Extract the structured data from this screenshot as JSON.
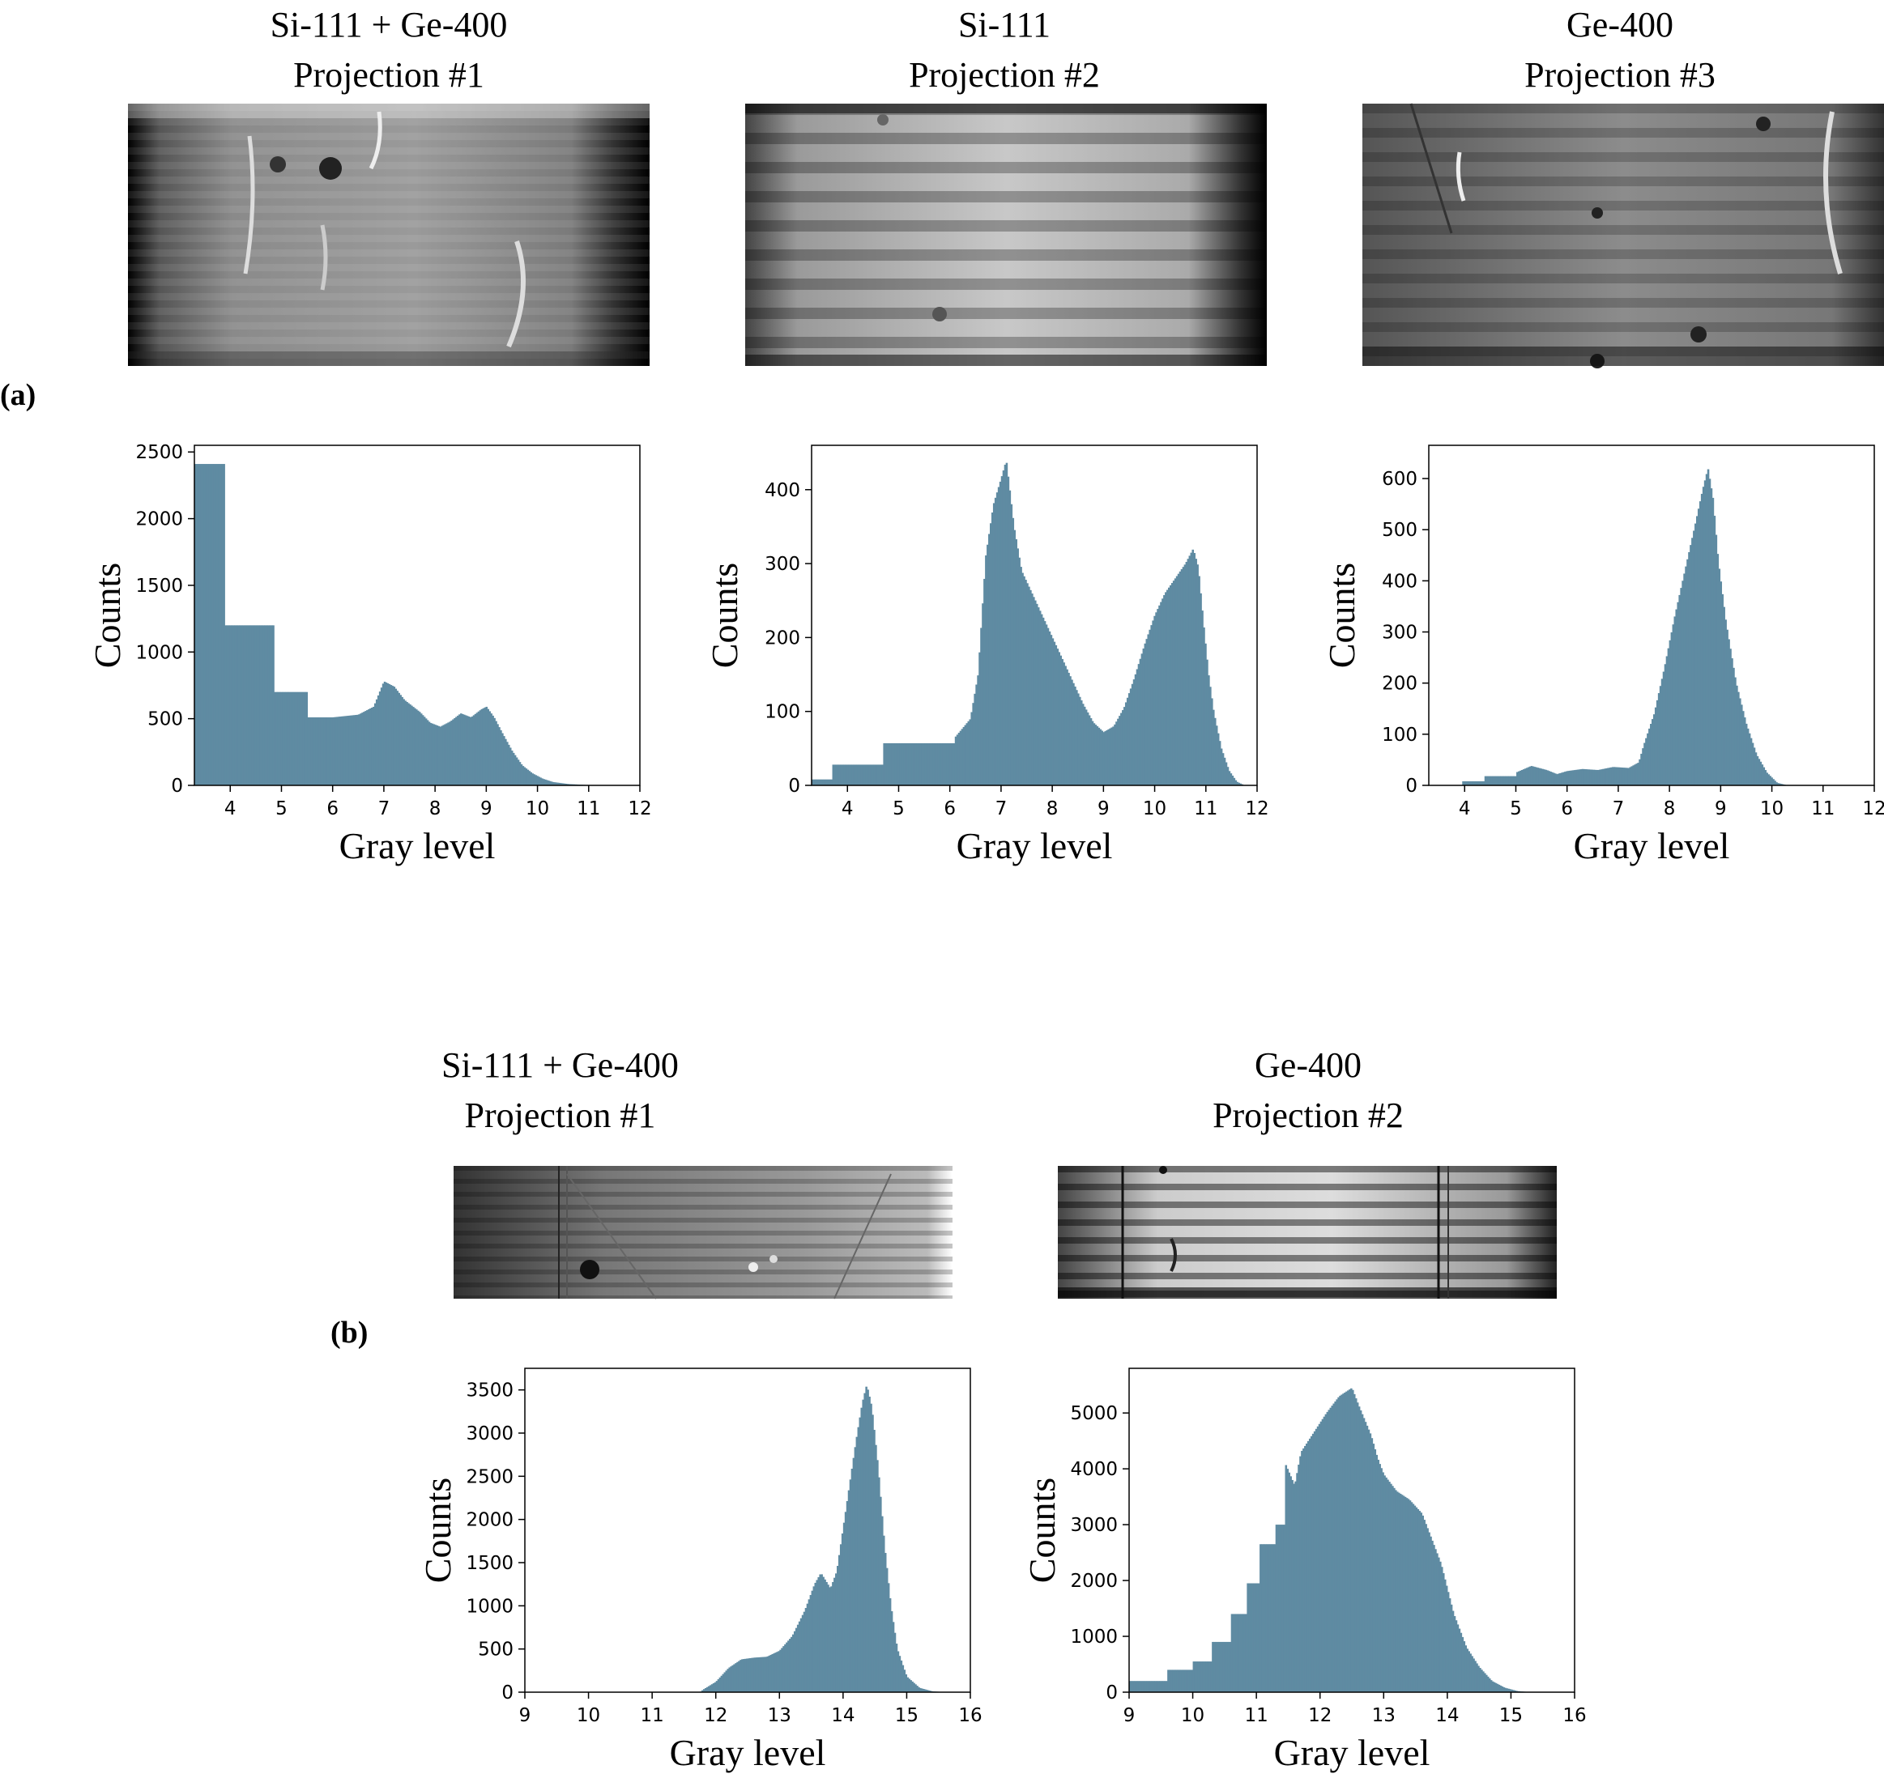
{
  "figure": {
    "panel_a_label": "(a)",
    "panel_b_label": "(b)",
    "bar_color": "#5f8ba2"
  },
  "panels": [
    {
      "title_line1": "Si-111 + Ge-400",
      "title_line2": "Projection #1",
      "image_style": "bright-center-dark-edges",
      "chart": {
        "xlabel": "Gray level",
        "ylabel": "Counts",
        "xlim": [
          3.3,
          12
        ],
        "ylim": [
          0,
          2550
        ],
        "xticks": [
          4,
          5,
          6,
          7,
          8,
          9,
          10,
          11,
          12
        ],
        "yticks": [
          0,
          500,
          1000,
          1500,
          2000,
          2500
        ]
      }
    },
    {
      "title_line1": "Si-111",
      "title_line2": "Projection #2",
      "image_style": "horizontal-banding",
      "chart": {
        "xlabel": "Gray level",
        "ylabel": "Counts",
        "xlim": [
          3.3,
          12
        ],
        "ylim": [
          0,
          460
        ],
        "xticks": [
          4,
          5,
          6,
          7,
          8,
          9,
          10,
          11,
          12
        ],
        "yticks": [
          0,
          100,
          200,
          300,
          400
        ]
      }
    },
    {
      "title_line1": "Ge-400",
      "title_line2": "Projection #3",
      "image_style": "banding-with-defects",
      "chart": {
        "xlabel": "Gray level",
        "ylabel": "Counts",
        "xlim": [
          3.3,
          12
        ],
        "ylim": [
          0,
          665
        ],
        "xticks": [
          4,
          5,
          6,
          7,
          8,
          9,
          10,
          11,
          12
        ],
        "yticks": [
          0,
          100,
          200,
          300,
          400,
          500,
          600
        ]
      }
    },
    {
      "title_line1": "Si-111 + Ge-400",
      "title_line2": "Projection #1",
      "image_style": "gray-with-defects",
      "chart": {
        "xlabel": "Gray level",
        "ylabel": "Counts",
        "xlim": [
          9,
          16
        ],
        "ylim": [
          0,
          3750
        ],
        "xticks": [
          9,
          10,
          11,
          12,
          13,
          14,
          15,
          16
        ],
        "yticks": [
          0,
          500,
          1000,
          1500,
          2000,
          2500,
          3000,
          3500
        ]
      }
    },
    {
      "title_line1": "Ge-400",
      "title_line2": "Projection #2",
      "image_style": "high-contrast-streaks",
      "chart": {
        "xlabel": "Gray level",
        "ylabel": "Counts",
        "xlim": [
          9,
          16
        ],
        "ylim": [
          0,
          5800
        ],
        "xticks": [
          9,
          10,
          11,
          12,
          13,
          14,
          15,
          16
        ],
        "yticks": [
          0,
          1000,
          2000,
          3000,
          4000,
          5000
        ]
      }
    }
  ],
  "chart_data": [
    {
      "type": "bar",
      "subtype": "histogram",
      "xlabel": "Gray level",
      "ylabel": "Counts",
      "xlim": [
        3.3,
        12
      ],
      "ylim": [
        0,
        2550
      ],
      "profile": [
        [
          3.3,
          2410
        ],
        [
          3.9,
          2410
        ],
        [
          3.9,
          1200
        ],
        [
          4.85,
          1200
        ],
        [
          4.85,
          700
        ],
        [
          5.5,
          700
        ],
        [
          5.5,
          510
        ],
        [
          6.0,
          510
        ],
        [
          6.5,
          530
        ],
        [
          6.8,
          590
        ],
        [
          7.0,
          780
        ],
        [
          7.2,
          740
        ],
        [
          7.4,
          640
        ],
        [
          7.7,
          550
        ],
        [
          7.9,
          470
        ],
        [
          8.1,
          440
        ],
        [
          8.3,
          480
        ],
        [
          8.5,
          540
        ],
        [
          8.7,
          510
        ],
        [
          8.9,
          570
        ],
        [
          9.0,
          590
        ],
        [
          9.15,
          510
        ],
        [
          9.3,
          400
        ],
        [
          9.5,
          260
        ],
        [
          9.7,
          150
        ],
        [
          9.9,
          90
        ],
        [
          10.1,
          50
        ],
        [
          10.3,
          25
        ],
        [
          10.6,
          10
        ],
        [
          10.9,
          4
        ],
        [
          11.2,
          0
        ],
        [
          12,
          0
        ]
      ]
    },
    {
      "type": "bar",
      "subtype": "histogram",
      "xlabel": "Gray level",
      "ylabel": "Counts",
      "xlim": [
        3.3,
        12
      ],
      "ylim": [
        0,
        460
      ],
      "profile": [
        [
          3.3,
          8
        ],
        [
          3.7,
          8
        ],
        [
          3.7,
          28
        ],
        [
          4.7,
          28
        ],
        [
          4.7,
          57
        ],
        [
          6.1,
          57
        ],
        [
          6.1,
          65
        ],
        [
          6.4,
          90
        ],
        [
          6.55,
          150
        ],
        [
          6.7,
          310
        ],
        [
          6.85,
          380
        ],
        [
          7.0,
          415
        ],
        [
          7.1,
          440
        ],
        [
          7.25,
          350
        ],
        [
          7.4,
          290
        ],
        [
          7.6,
          260
        ],
        [
          7.8,
          230
        ],
        [
          8.0,
          200
        ],
        [
          8.2,
          170
        ],
        [
          8.4,
          140
        ],
        [
          8.6,
          110
        ],
        [
          8.8,
          85
        ],
        [
          9.0,
          72
        ],
        [
          9.2,
          80
        ],
        [
          9.4,
          105
        ],
        [
          9.6,
          145
        ],
        [
          9.8,
          190
        ],
        [
          10.0,
          230
        ],
        [
          10.2,
          260
        ],
        [
          10.4,
          280
        ],
        [
          10.6,
          300
        ],
        [
          10.75,
          320
        ],
        [
          10.85,
          295
        ],
        [
          10.95,
          220
        ],
        [
          11.05,
          150
        ],
        [
          11.15,
          100
        ],
        [
          11.3,
          50
        ],
        [
          11.45,
          20
        ],
        [
          11.6,
          5
        ],
        [
          11.75,
          0
        ],
        [
          12,
          0
        ]
      ]
    },
    {
      "type": "bar",
      "subtype": "histogram",
      "xlabel": "Gray level",
      "ylabel": "Counts",
      "xlim": [
        3.3,
        12
      ],
      "ylim": [
        0,
        665
      ],
      "profile": [
        [
          3.3,
          0
        ],
        [
          3.95,
          0
        ],
        [
          3.95,
          8
        ],
        [
          4.4,
          8
        ],
        [
          4.4,
          18
        ],
        [
          5.0,
          18
        ],
        [
          5.0,
          25
        ],
        [
          5.3,
          38
        ],
        [
          5.6,
          30
        ],
        [
          5.8,
          22
        ],
        [
          6.0,
          28
        ],
        [
          6.3,
          32
        ],
        [
          6.6,
          30
        ],
        [
          6.9,
          36
        ],
        [
          7.2,
          34
        ],
        [
          7.4,
          45
        ],
        [
          7.5,
          80
        ],
        [
          7.7,
          140
        ],
        [
          7.9,
          230
        ],
        [
          8.1,
          330
        ],
        [
          8.3,
          420
        ],
        [
          8.5,
          510
        ],
        [
          8.65,
          580
        ],
        [
          8.75,
          620
        ],
        [
          8.85,
          560
        ],
        [
          8.95,
          440
        ],
        [
          9.1,
          320
        ],
        [
          9.3,
          200
        ],
        [
          9.5,
          120
        ],
        [
          9.7,
          60
        ],
        [
          9.9,
          25
        ],
        [
          10.1,
          5
        ],
        [
          10.3,
          0
        ],
        [
          12,
          0
        ]
      ]
    },
    {
      "type": "bar",
      "subtype": "histogram",
      "xlabel": "Gray level",
      "ylabel": "Counts",
      "xlim": [
        9,
        16
      ],
      "ylim": [
        0,
        3750
      ],
      "profile": [
        [
          9,
          0
        ],
        [
          11.75,
          0
        ],
        [
          11.8,
          30
        ],
        [
          12.0,
          120
        ],
        [
          12.2,
          280
        ],
        [
          12.4,
          380
        ],
        [
          12.6,
          400
        ],
        [
          12.8,
          410
        ],
        [
          13.0,
          480
        ],
        [
          13.2,
          650
        ],
        [
          13.4,
          950
        ],
        [
          13.55,
          1250
        ],
        [
          13.65,
          1380
        ],
        [
          13.8,
          1200
        ],
        [
          13.9,
          1400
        ],
        [
          14.0,
          1900
        ],
        [
          14.1,
          2400
        ],
        [
          14.2,
          2900
        ],
        [
          14.3,
          3350
        ],
        [
          14.37,
          3560
        ],
        [
          14.45,
          3300
        ],
        [
          14.55,
          2600
        ],
        [
          14.65,
          1700
        ],
        [
          14.75,
          1000
        ],
        [
          14.85,
          500
        ],
        [
          15.0,
          180
        ],
        [
          15.2,
          50
        ],
        [
          15.4,
          10
        ],
        [
          15.6,
          0
        ],
        [
          16,
          0
        ]
      ]
    },
    {
      "type": "bar",
      "subtype": "histogram",
      "xlabel": "Gray level",
      "ylabel": "Counts",
      "xlim": [
        9,
        16
      ],
      "ylim": [
        0,
        5800
      ],
      "profile": [
        [
          9,
          200
        ],
        [
          9.6,
          200
        ],
        [
          9.6,
          400
        ],
        [
          10.0,
          400
        ],
        [
          10.0,
          550
        ],
        [
          10.3,
          550
        ],
        [
          10.3,
          900
        ],
        [
          10.6,
          900
        ],
        [
          10.6,
          1400
        ],
        [
          10.85,
          1400
        ],
        [
          10.85,
          1950
        ],
        [
          11.05,
          1950
        ],
        [
          11.05,
          2650
        ],
        [
          11.3,
          2650
        ],
        [
          11.3,
          3000
        ],
        [
          11.45,
          3000
        ],
        [
          11.45,
          4100
        ],
        [
          11.6,
          3700
        ],
        [
          11.7,
          4300
        ],
        [
          11.9,
          4650
        ],
        [
          12.1,
          5000
        ],
        [
          12.3,
          5300
        ],
        [
          12.5,
          5450
        ],
        [
          12.6,
          5150
        ],
        [
          12.8,
          4600
        ],
        [
          12.9,
          4200
        ],
        [
          13.0,
          3900
        ],
        [
          13.2,
          3600
        ],
        [
          13.4,
          3450
        ],
        [
          13.6,
          3200
        ],
        [
          13.7,
          2900
        ],
        [
          13.9,
          2300
        ],
        [
          14.1,
          1400
        ],
        [
          14.3,
          800
        ],
        [
          14.5,
          450
        ],
        [
          14.7,
          200
        ],
        [
          14.9,
          80
        ],
        [
          15.1,
          20
        ],
        [
          15.3,
          0
        ],
        [
          16,
          0
        ]
      ]
    }
  ]
}
